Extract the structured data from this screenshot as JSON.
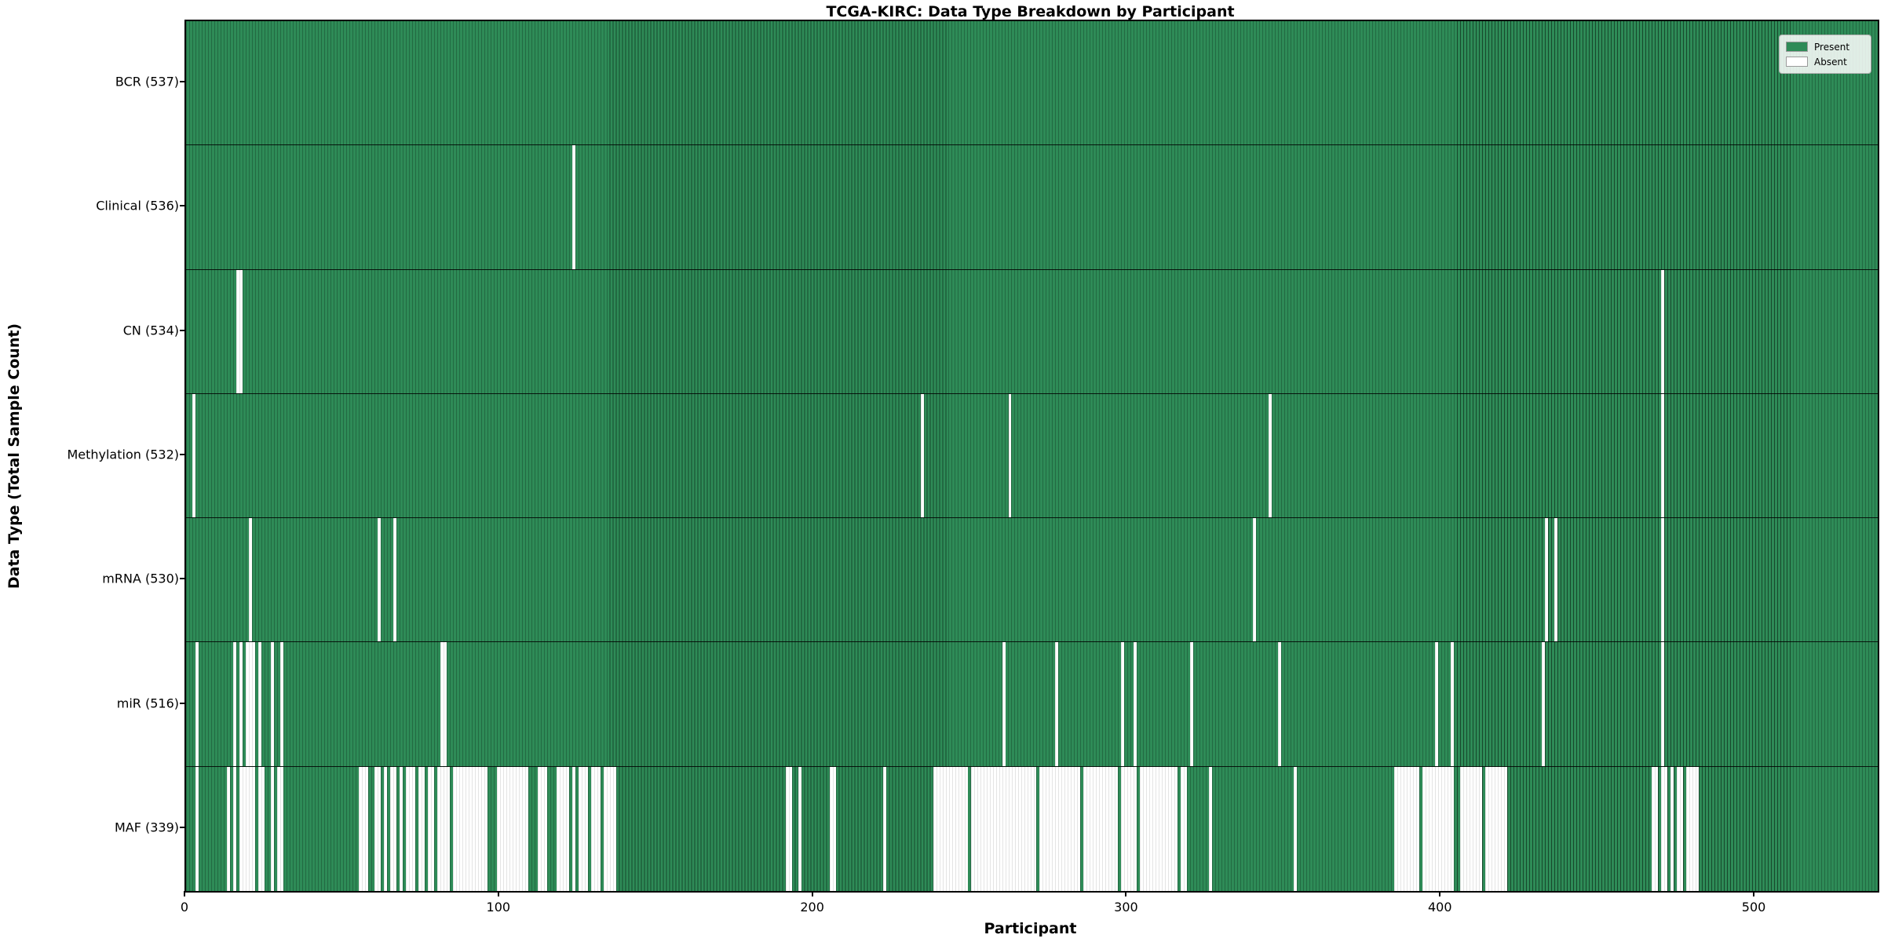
{
  "chart_data": {
    "type": "heatmap",
    "title": "TCGA-KIRC: Data Type Breakdown by Participant",
    "xlabel": "Participant",
    "ylabel": "Data Type (Total Sample Count)",
    "x_ticks": [
      0,
      100,
      200,
      300,
      400,
      500
    ],
    "x_axis_max": 539,
    "n_participants": 537,
    "grid": false,
    "legend": {
      "position": "upper-right",
      "entries": [
        {
          "label": "Present",
          "color": "#2e8b57"
        },
        {
          "label": "Absent",
          "color": "#ffffff"
        }
      ]
    },
    "colors": {
      "present_fill": "#2e8b57",
      "present_edge": "#17482c",
      "absent_fill": "#ffffff",
      "absent_edge": "#c9c9c9",
      "row_divider": "#1a1a1a",
      "frame": "#000000"
    },
    "rows": [
      {
        "data_type": "BCR",
        "label": "BCR (537)",
        "present_count": 537,
        "absent_ranges": []
      },
      {
        "data_type": "Clinical",
        "label": "Clinical (536)",
        "present_count": 536,
        "absent_ranges": [
          [
            123,
            123
          ]
        ]
      },
      {
        "data_type": "CN",
        "label": "CN (534)",
        "present_count": 534,
        "absent_ranges": [
          [
            16,
            17
          ],
          [
            470,
            470
          ]
        ]
      },
      {
        "data_type": "Methylation",
        "label": "Methylation (532)",
        "present_count": 532,
        "absent_ranges": [
          [
            2,
            2
          ],
          [
            234,
            234
          ],
          [
            262,
            262
          ],
          [
            345,
            345
          ],
          [
            470,
            470
          ]
        ]
      },
      {
        "data_type": "mRNA",
        "label": "mRNA (530)",
        "present_count": 530,
        "absent_ranges": [
          [
            20,
            20
          ],
          [
            61,
            61
          ],
          [
            66,
            66
          ],
          [
            340,
            340
          ],
          [
            433,
            433
          ],
          [
            436,
            436
          ],
          [
            470,
            470
          ]
        ]
      },
      {
        "data_type": "miR",
        "label": "miR (516)",
        "present_count": 516,
        "absent_ranges": [
          [
            3,
            3
          ],
          [
            15,
            15
          ],
          [
            17,
            17
          ],
          [
            19,
            21
          ],
          [
            23,
            23
          ],
          [
            27,
            27
          ],
          [
            30,
            30
          ],
          [
            81,
            82
          ],
          [
            260,
            260
          ],
          [
            277,
            277
          ],
          [
            298,
            298
          ],
          [
            302,
            302
          ],
          [
            320,
            320
          ],
          [
            348,
            348
          ],
          [
            398,
            398
          ],
          [
            403,
            403
          ],
          [
            432,
            432
          ],
          [
            470,
            470
          ]
        ]
      },
      {
        "data_type": "MAF",
        "label": "MAF (339)",
        "present_count": 339,
        "absent_ranges": [
          [
            3,
            3
          ],
          [
            13,
            13
          ],
          [
            15,
            15
          ],
          [
            17,
            21
          ],
          [
            23,
            24
          ],
          [
            27,
            27
          ],
          [
            29,
            30
          ],
          [
            55,
            57
          ],
          [
            60,
            61
          ],
          [
            63,
            63
          ],
          [
            65,
            66
          ],
          [
            68,
            68
          ],
          [
            70,
            72
          ],
          [
            74,
            75
          ],
          [
            77,
            78
          ],
          [
            80,
            83
          ],
          [
            85,
            95
          ],
          [
            99,
            108
          ],
          [
            112,
            114
          ],
          [
            118,
            121
          ],
          [
            123,
            123
          ],
          [
            125,
            127
          ],
          [
            129,
            131
          ],
          [
            133,
            136
          ],
          [
            191,
            192
          ],
          [
            195,
            195
          ],
          [
            205,
            206
          ],
          [
            222,
            222
          ],
          [
            238,
            248
          ],
          [
            250,
            270
          ],
          [
            272,
            284
          ],
          [
            286,
            296
          ],
          [
            298,
            302
          ],
          [
            304,
            315
          ],
          [
            317,
            318
          ],
          [
            326,
            326
          ],
          [
            353,
            353
          ],
          [
            385,
            392
          ],
          [
            394,
            403
          ],
          [
            406,
            412
          ],
          [
            414,
            420
          ],
          [
            467,
            468
          ],
          [
            470,
            471
          ],
          [
            473,
            473
          ],
          [
            475,
            476
          ],
          [
            478,
            481
          ]
        ]
      }
    ]
  }
}
